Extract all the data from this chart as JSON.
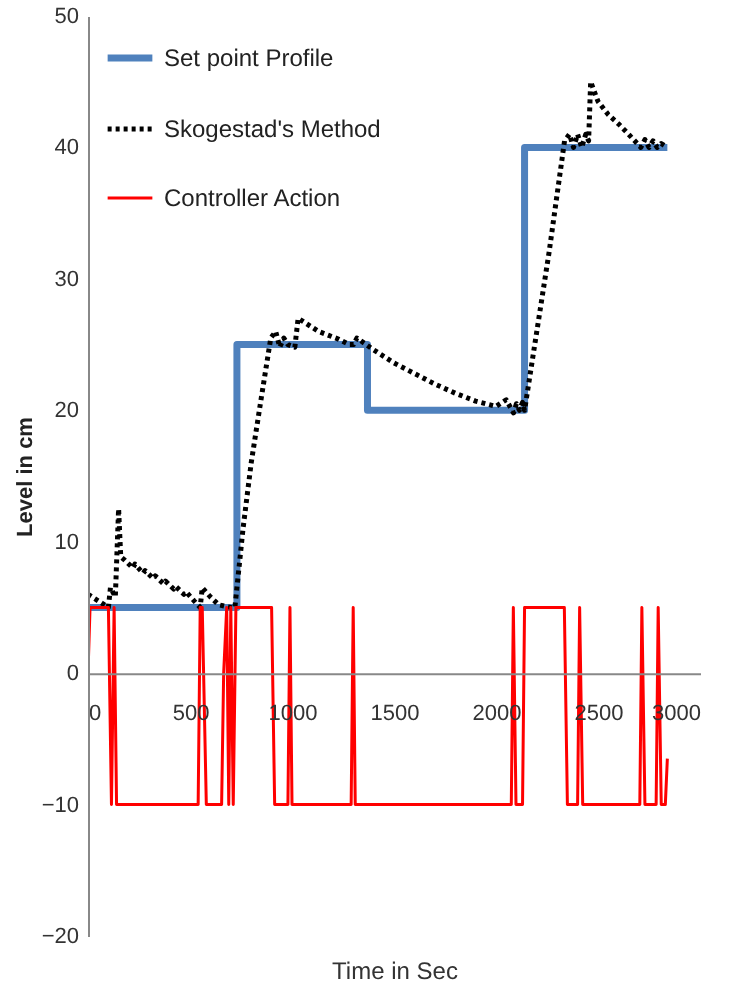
{
  "chart_data": {
    "type": "line",
    "xlabel": "Time in Sec",
    "ylabel": "Level in cm",
    "xlim": [
      0,
      3000
    ],
    "xticks": [
      0,
      500,
      1000,
      1500,
      2000,
      2500,
      3000
    ],
    "ylim": [
      -20,
      50
    ],
    "yticks": [
      -20,
      -10,
      0,
      10,
      20,
      30,
      40,
      50
    ],
    "legend": "top left",
    "series": [
      {
        "name": "Set point Profile",
        "color": "#4f81bd",
        "line_style": "solid",
        "x": [
          0,
          730,
          730,
          1370,
          1370,
          2140,
          2140,
          2840
        ],
        "values": [
          5,
          5,
          25,
          25,
          20,
          20,
          40,
          40
        ]
      },
      {
        "name": "Skogestad's Method",
        "color": "#000000",
        "line_style": "dotted",
        "x": [
          0,
          30,
          60,
          100,
          110,
          134,
          150,
          160,
          165,
          180,
          220,
          230,
          270,
          280,
          320,
          330,
          370,
          380,
          420,
          430,
          470,
          480,
          520,
          550,
          560,
          600,
          640,
          700,
          720,
          760,
          800,
          850,
          896,
          920,
          940,
          960,
          980,
          1014,
          1030,
          1080,
          1130,
          1180,
          1230,
          1280,
          1302,
          1318,
          1400,
          1500,
          1600,
          1700,
          1800,
          1900,
          2000,
          2050,
          2086,
          2100,
          2115,
          2130,
          2140,
          2200,
          2260,
          2336,
          2360,
          2380,
          2400,
          2420,
          2440,
          2454,
          2464,
          2500,
          2550,
          2600,
          2650,
          2710,
          2730,
          2750,
          2770,
          2790,
          2810,
          2840
        ],
        "values": [
          6,
          5.7,
          5.4,
          5,
          6.5,
          5.8,
          12.5,
          9,
          8.8,
          8.6,
          8,
          8.3,
          7.6,
          7.8,
          7.2,
          7.4,
          6.8,
          7,
          6.4,
          6.6,
          6,
          6.2,
          5.5,
          5,
          6.5,
          5.8,
          5.2,
          5,
          5,
          11,
          16,
          21,
          25.5,
          26,
          24.8,
          25.5,
          25,
          24.8,
          27,
          26.5,
          26,
          25.7,
          25.4,
          25,
          25,
          25.5,
          24.6,
          23.6,
          22.8,
          22,
          21.3,
          20.7,
          20.3,
          20.8,
          19.8,
          20.5,
          20,
          20.6,
          20,
          26,
          32,
          40.5,
          41,
          40,
          41,
          40,
          41,
          40.5,
          45,
          43.5,
          42.5,
          41.8,
          41,
          40,
          40.6,
          40,
          40.5,
          40,
          40.3,
          40
        ]
      },
      {
        "name": "Controller Action",
        "color": "#ff0000",
        "line_style": "solid",
        "x": [
          0,
          10,
          100,
          115,
          128,
          140,
          540,
          550,
          560,
          580,
          655,
          665,
          680,
          690,
          700,
          712,
          725,
          740,
          900,
          915,
          980,
          990,
          1000,
          1290,
          1300,
          1310,
          2075,
          2085,
          2098,
          2130,
          2140,
          2335,
          2350,
          2400,
          2410,
          2425,
          2705,
          2715,
          2730,
          2785,
          2795,
          2810,
          2830,
          2840
        ],
        "values": [
          0,
          5,
          5,
          -10,
          5,
          -10,
          -10,
          5,
          5,
          -10,
          -10,
          0,
          5,
          -10,
          5,
          -10,
          5,
          5,
          5,
          -10,
          -10,
          5,
          -10,
          -10,
          5,
          -10,
          -10,
          5,
          -10,
          -10,
          5,
          5,
          -10,
          -10,
          5,
          -10,
          -10,
          5,
          -10,
          -10,
          5,
          -10,
          -10,
          -6.5
        ]
      }
    ]
  }
}
